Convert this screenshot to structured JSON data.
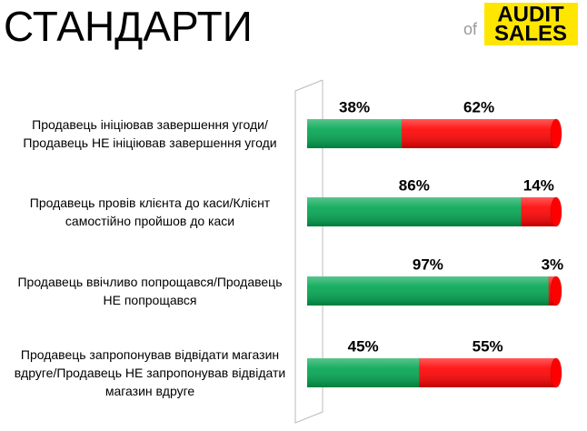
{
  "chart_data": {
    "type": "bar",
    "stacked": true,
    "orientation": "horizontal",
    "title": "СТАНДАРТИ",
    "logo": {
      "prefix": "of",
      "line1": "AUDIT",
      "line2": "SALES"
    },
    "categories": [
      "Продавець ініціював завершення угоди/Продавець НЕ ініціював завершення угоди",
      "Продавець провів клієнта до каси/Клієнт самостійно пройшов до каси",
      "Продавець ввічливо попрощався/Продавець НЕ попрощався",
      "Продавець запропонував відвідати магазин вдруге/Продавець НЕ запропонував відвідати магазин вдруге"
    ],
    "series": [
      {
        "color": "#00a550",
        "values": [
          38,
          86,
          97,
          45
        ],
        "value_labels": [
          "38%",
          "86%",
          "97%",
          "45%"
        ]
      },
      {
        "color": "#ff0000",
        "values": [
          62,
          14,
          3,
          55
        ],
        "value_labels": [
          "62%",
          "14%",
          "3%",
          "55%"
        ]
      }
    ],
    "xlim": [
      0,
      100
    ]
  }
}
